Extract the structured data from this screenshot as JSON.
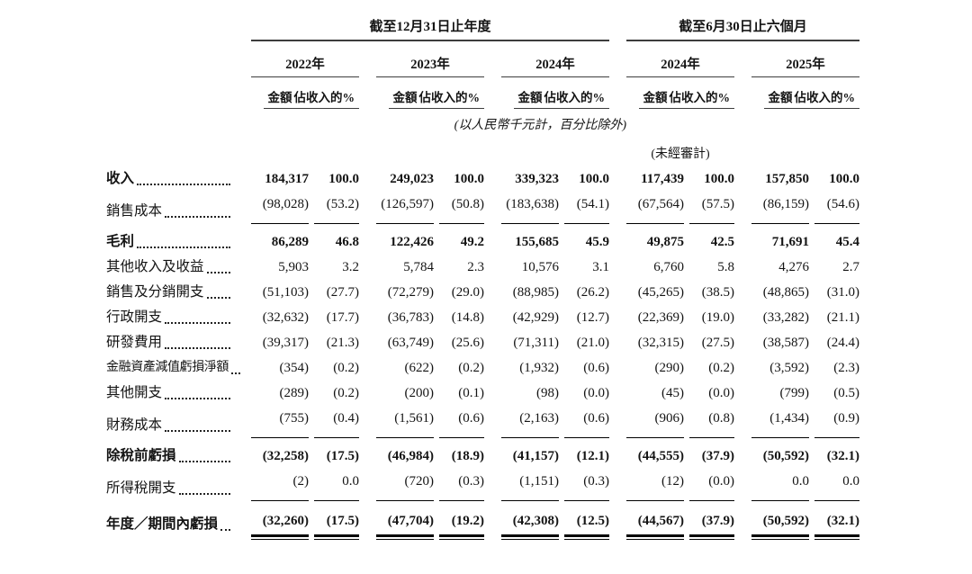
{
  "table": {
    "header": {
      "group1_title": "截至12月31日止年度",
      "group2_title": "截至6月30日止六個月",
      "years": [
        "2022年",
        "2023年",
        "2024年",
        "2024年",
        "2025年"
      ],
      "amount_label": "金額",
      "pct_label": "佔收入的%"
    },
    "notes": {
      "unit_note": "(以人民幣千元計，百分比除外)",
      "unaudited_note": "(未經審計)"
    },
    "rows": [
      {
        "label": "收入",
        "bold": true,
        "values": [
          "184,317",
          "100.0",
          "249,023",
          "100.0",
          "339,323",
          "100.0",
          "117,439",
          "100.0",
          "157,850",
          "100.0"
        ]
      },
      {
        "label": "銷售成本",
        "rule_below": true,
        "values": [
          "(98,028)",
          "(53.2)",
          "(126,597)",
          "(50.8)",
          "(183,638)",
          "(54.1)",
          "(67,564)",
          "(57.5)",
          "(86,159)",
          "(54.6)"
        ]
      },
      {
        "label": "毛利",
        "bold": true,
        "extra_top": true,
        "values": [
          "86,289",
          "46.8",
          "122,426",
          "49.2",
          "155,685",
          "45.9",
          "49,875",
          "42.5",
          "71,691",
          "45.4"
        ]
      },
      {
        "label": "其他收入及收益",
        "values": [
          "5,903",
          "3.2",
          "5,784",
          "2.3",
          "10,576",
          "3.1",
          "6,760",
          "5.8",
          "4,276",
          "2.7"
        ]
      },
      {
        "label": "銷售及分銷開支",
        "values": [
          "(51,103)",
          "(27.7)",
          "(72,279)",
          "(29.0)",
          "(88,985)",
          "(26.2)",
          "(45,265)",
          "(38.5)",
          "(48,865)",
          "(31.0)"
        ]
      },
      {
        "label": "行政開支",
        "values": [
          "(32,632)",
          "(17.7)",
          "(36,783)",
          "(14.8)",
          "(42,929)",
          "(12.7)",
          "(22,369)",
          "(19.0)",
          "(33,282)",
          "(21.1)"
        ]
      },
      {
        "label": "研發費用",
        "values": [
          "(39,317)",
          "(21.3)",
          "(63,749)",
          "(25.6)",
          "(71,311)",
          "(21.0)",
          "(32,315)",
          "(27.5)",
          "(38,587)",
          "(24.4)"
        ]
      },
      {
        "label": "金融資產減值虧損淨額",
        "values": [
          "(354)",
          "(0.2)",
          "(622)",
          "(0.2)",
          "(1,932)",
          "(0.6)",
          "(290)",
          "(0.2)",
          "(3,592)",
          "(2.3)"
        ]
      },
      {
        "label": "其他開支",
        "values": [
          "(289)",
          "(0.2)",
          "(200)",
          "(0.1)",
          "(98)",
          "(0.0)",
          "(45)",
          "(0.0)",
          "(799)",
          "(0.5)"
        ]
      },
      {
        "label": "財務成本",
        "rule_below": true,
        "values": [
          "(755)",
          "(0.4)",
          "(1,561)",
          "(0.6)",
          "(2,163)",
          "(0.6)",
          "(906)",
          "(0.8)",
          "(1,434)",
          "(0.9)"
        ]
      },
      {
        "label": "除稅前虧損",
        "bold": true,
        "extra_top": true,
        "values": [
          "(32,258)",
          "(17.5)",
          "(46,984)",
          "(18.9)",
          "(41,157)",
          "(12.1)",
          "(44,555)",
          "(37.9)",
          "(50,592)",
          "(32.1)"
        ]
      },
      {
        "label": "所得稅開支",
        "rule_below": true,
        "values": [
          "(2)",
          "0.0",
          "(720)",
          "(0.3)",
          "(1,151)",
          "(0.3)",
          "(12)",
          "(0.0)",
          "0.0",
          "0.0"
        ]
      },
      {
        "label": "年度／期間內虧損",
        "bold": true,
        "extra_top2": true,
        "double_rule_below": true,
        "values": [
          "(32,260)",
          "(17.5)",
          "(47,704)",
          "(19.2)",
          "(42,308)",
          "(12.5)",
          "(44,567)",
          "(37.9)",
          "(50,592)",
          "(32.1)"
        ]
      }
    ]
  }
}
